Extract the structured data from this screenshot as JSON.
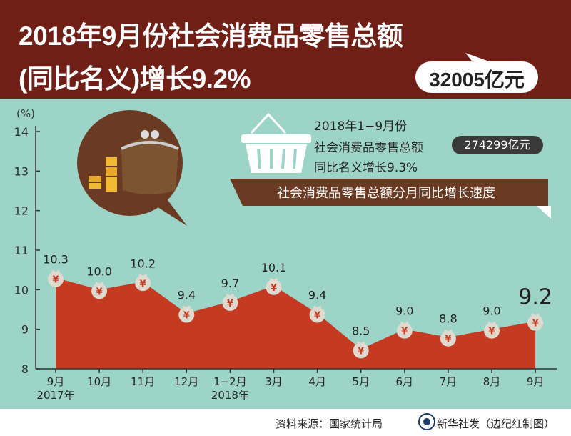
{
  "header": {
    "title_line1": "2018年9月份社会消费品零售总额",
    "title_line2": "(同比名义)增长9.2%",
    "bubble_value": "32005亿元"
  },
  "summary": {
    "period": "2018年1−9月份",
    "total_label": "社会消费品零售总额",
    "total_value": "274299亿元",
    "growth_text": "同比名义增长9.3%"
  },
  "chart_data": {
    "type": "area",
    "title": "社会消费品零售总额分月同比增长速度",
    "ylabel": "(%)",
    "ylim": [
      8,
      14
    ],
    "yticks": [
      8,
      9,
      10,
      11,
      12,
      13,
      14
    ],
    "categories": [
      "9月",
      "10月",
      "11月",
      "12月",
      "1−2月",
      "3月",
      "4月",
      "5月",
      "6月",
      "7月",
      "8月",
      "9月"
    ],
    "category_sublabels": [
      "2017年",
      "",
      "",
      "",
      "2018年",
      "",
      "",
      "",
      "",
      "",
      "",
      ""
    ],
    "values": [
      10.3,
      10.0,
      10.2,
      9.4,
      9.7,
      10.1,
      9.4,
      8.5,
      9.0,
      8.8,
      9.0,
      9.2
    ],
    "data_labels": [
      "10.3",
      "10.0",
      "10.2",
      "9.4",
      "9.7",
      "10.1",
      "9.4",
      "8.5",
      "9.0",
      "8.8",
      "9.0",
      "9.2"
    ],
    "marker_symbol": "¥",
    "fill_color": "#c43b22",
    "grid": false
  },
  "footer": {
    "source": "资料来源：国家统计局",
    "credit": "新华社发（边纪红制图）"
  },
  "colors": {
    "header_bg": "#6f1f15",
    "page_bg": "#9dd4c8",
    "area_fill": "#c43b22",
    "banner_bg": "#6b3a22",
    "marker": "#dfdad0"
  }
}
